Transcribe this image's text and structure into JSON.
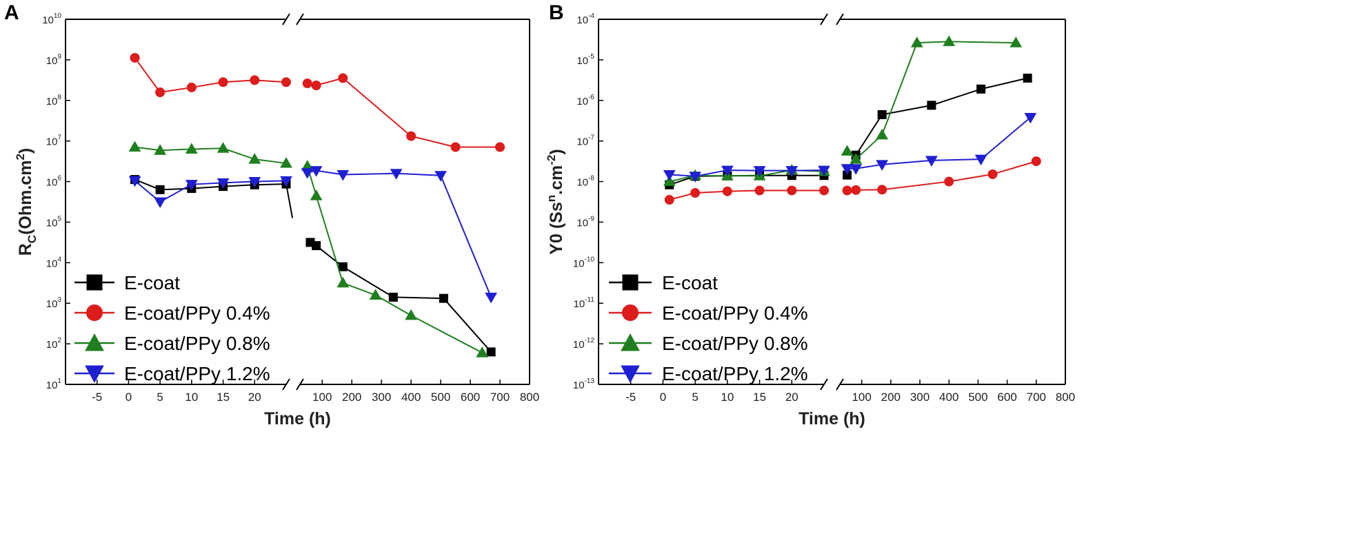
{
  "chart_data": [
    {
      "panel_label": "A",
      "type": "line",
      "title": "",
      "xlabel": "Time (h)",
      "ylabel": {
        "main": "R",
        "sub": "C",
        "rest": "(Ohm.cm",
        "sup": "2",
        "close": ")"
      },
      "y_scale": "log",
      "ylim_exponent": [
        1,
        10
      ],
      "y_ticks": [
        {
          "base": "10",
          "exp": "10",
          "e": 10
        },
        {
          "base": "10",
          "exp": "9",
          "e": 9
        },
        {
          "base": "10",
          "exp": "8",
          "e": 8
        },
        {
          "base": "10",
          "exp": "7",
          "e": 7
        },
        {
          "base": "10",
          "exp": "6",
          "e": 6
        },
        {
          "base": "10",
          "exp": "5",
          "e": 5
        },
        {
          "base": "10",
          "exp": "4",
          "e": 4
        },
        {
          "base": "10",
          "exp": "3",
          "e": 3
        },
        {
          "base": "10",
          "exp": "2",
          "e": 2
        },
        {
          "base": "10",
          "exp": "1",
          "e": 1
        }
      ],
      "x_ticks_left": [
        "-5",
        "0",
        "5",
        "10",
        "15",
        "20"
      ],
      "x_ticks_right": [
        "100",
        "200",
        "300",
        "400",
        "500",
        "600",
        "700",
        "800"
      ],
      "x_break": "after 25 h",
      "legend_position": "bottom-left",
      "series": [
        {
          "name": "E-coat",
          "color": "#000000",
          "marker": "square",
          "left": [
            [
              1,
              6.05
            ],
            [
              5,
              5.8
            ],
            [
              10,
              5.83
            ],
            [
              15,
              5.88
            ],
            [
              20,
              5.92
            ],
            [
              25,
              5.94
            ]
          ],
          "left_tail": [
            [
              25,
              5.94
            ],
            [
              26,
              5.1
            ]
          ],
          "right": [
            [
              60,
              4.5
            ],
            [
              80,
              4.42
            ],
            [
              170,
              3.9
            ],
            [
              340,
              3.15
            ],
            [
              510,
              3.12
            ],
            [
              670,
              1.8
            ]
          ]
        },
        {
          "name": "E-coat/PPy 0.4%",
          "color": "#dd1c1c",
          "marker": "circle",
          "left": [
            [
              1,
              9.05
            ],
            [
              5,
              8.2
            ],
            [
              10,
              8.32
            ],
            [
              15,
              8.45
            ],
            [
              20,
              8.5
            ],
            [
              25,
              8.45
            ]
          ],
          "right": [
            [
              50,
              8.42
            ],
            [
              80,
              8.37
            ],
            [
              170,
              8.55
            ],
            [
              400,
              7.12
            ],
            [
              550,
              6.85
            ],
            [
              700,
              6.85
            ]
          ]
        },
        {
          "name": "E-coat/PPy 0.8%",
          "color": "#1f7f1f",
          "marker": "triangle-up",
          "left": [
            [
              1,
              6.85
            ],
            [
              5,
              6.77
            ],
            [
              10,
              6.8
            ],
            [
              15,
              6.82
            ],
            [
              20,
              6.55
            ],
            [
              25,
              6.45
            ]
          ],
          "right": [
            [
              50,
              6.38
            ],
            [
              80,
              5.65
            ],
            [
              170,
              3.5
            ],
            [
              280,
              3.2
            ],
            [
              400,
              2.7
            ],
            [
              640,
              1.78
            ]
          ]
        },
        {
          "name": "E-coat/PPy 1.2%",
          "color": "#1f1fd2",
          "marker": "triangle-down",
          "left": [
            [
              1,
              6.02
            ],
            [
              5,
              5.5
            ],
            [
              10,
              5.93
            ],
            [
              15,
              5.97
            ],
            [
              20,
              6.0
            ],
            [
              25,
              6.02
            ]
          ],
          "right": [
            [
              50,
              6.22
            ],
            [
              80,
              6.27
            ],
            [
              170,
              6.17
            ],
            [
              350,
              6.2
            ],
            [
              500,
              6.15
            ],
            [
              670,
              3.15
            ]
          ]
        }
      ]
    },
    {
      "panel_label": "B",
      "type": "line",
      "title": "",
      "xlabel": "Time (h)",
      "ylabel": {
        "main": "Y0 (Ss",
        "sup": "n",
        "rest": ".cm",
        "sup2": "-2",
        "close": ")"
      },
      "y_scale": "log",
      "ylim_exponent": [
        -13,
        -4
      ],
      "y_ticks": [
        {
          "base": "10",
          "exp": "-4",
          "e": -4
        },
        {
          "base": "10",
          "exp": "-5",
          "e": -5
        },
        {
          "base": "10",
          "exp": "-6",
          "e": -6
        },
        {
          "base": "10",
          "exp": "-7",
          "e": -7
        },
        {
          "base": "10",
          "exp": "-8",
          "e": -8
        },
        {
          "base": "10",
          "exp": "-9",
          "e": -9
        },
        {
          "base": "10",
          "exp": "-10",
          "e": -10
        },
        {
          "base": "10",
          "exp": "-11",
          "e": -11
        },
        {
          "base": "10",
          "exp": "-12",
          "e": -12
        },
        {
          "base": "10",
          "exp": "-13",
          "e": -13
        }
      ],
      "x_ticks_left": [
        "-5",
        "0",
        "5",
        "10",
        "15",
        "20"
      ],
      "x_ticks_right": [
        "100",
        "200",
        "300",
        "400",
        "500",
        "600",
        "700",
        "800"
      ],
      "x_break": "after 25 h",
      "legend_position": "bottom-left",
      "series": [
        {
          "name": "E-coat",
          "color": "#000000",
          "marker": "square",
          "left": [
            [
              1,
              -8.08
            ],
            [
              5,
              -7.87
            ],
            [
              10,
              -7.86
            ],
            [
              15,
              -7.85
            ],
            [
              20,
              -7.85
            ],
            [
              25,
              -7.85
            ]
          ],
          "right": [
            [
              50,
              -7.84
            ],
            [
              80,
              -7.35
            ],
            [
              170,
              -6.35
            ],
            [
              340,
              -6.12
            ],
            [
              510,
              -5.72
            ],
            [
              670,
              -5.45
            ]
          ]
        },
        {
          "name": "E-coat/PPy 0.4%",
          "color": "#dd1c1c",
          "marker": "circle",
          "left": [
            [
              1,
              -8.45
            ],
            [
              5,
              -8.28
            ],
            [
              10,
              -8.24
            ],
            [
              15,
              -8.22
            ],
            [
              20,
              -8.22
            ],
            [
              25,
              -8.22
            ]
          ],
          "right": [
            [
              50,
              -8.22
            ],
            [
              80,
              -8.21
            ],
            [
              170,
              -8.2
            ],
            [
              400,
              -8.0
            ],
            [
              550,
              -7.82
            ],
            [
              700,
              -7.5
            ]
          ]
        },
        {
          "name": "E-coat/PPy 0.8%",
          "color": "#1f7f1f",
          "marker": "triangle-up",
          "left": [
            [
              1,
              -8.0
            ],
            [
              5,
              -7.85
            ],
            [
              10,
              -7.86
            ],
            [
              15,
              -7.86
            ],
            [
              20,
              -7.72
            ],
            [
              25,
              -7.75
            ]
          ],
          "right": [
            [
              50,
              -7.25
            ],
            [
              80,
              -7.45
            ],
            [
              170,
              -6.85
            ],
            [
              290,
              -4.58
            ],
            [
              400,
              -4.55
            ],
            [
              630,
              -4.58
            ]
          ]
        },
        {
          "name": "E-coat/PPy 1.2%",
          "color": "#1f1fd2",
          "marker": "triangle-down",
          "left": [
            [
              1,
              -7.83
            ],
            [
              5,
              -7.87
            ],
            [
              10,
              -7.72
            ],
            [
              15,
              -7.73
            ],
            [
              20,
              -7.73
            ],
            [
              25,
              -7.72
            ]
          ],
          "right": [
            [
              50,
              -7.68
            ],
            [
              80,
              -7.68
            ],
            [
              170,
              -7.58
            ],
            [
              340,
              -7.48
            ],
            [
              510,
              -7.45
            ],
            [
              680,
              -6.42
            ]
          ]
        }
      ]
    }
  ]
}
